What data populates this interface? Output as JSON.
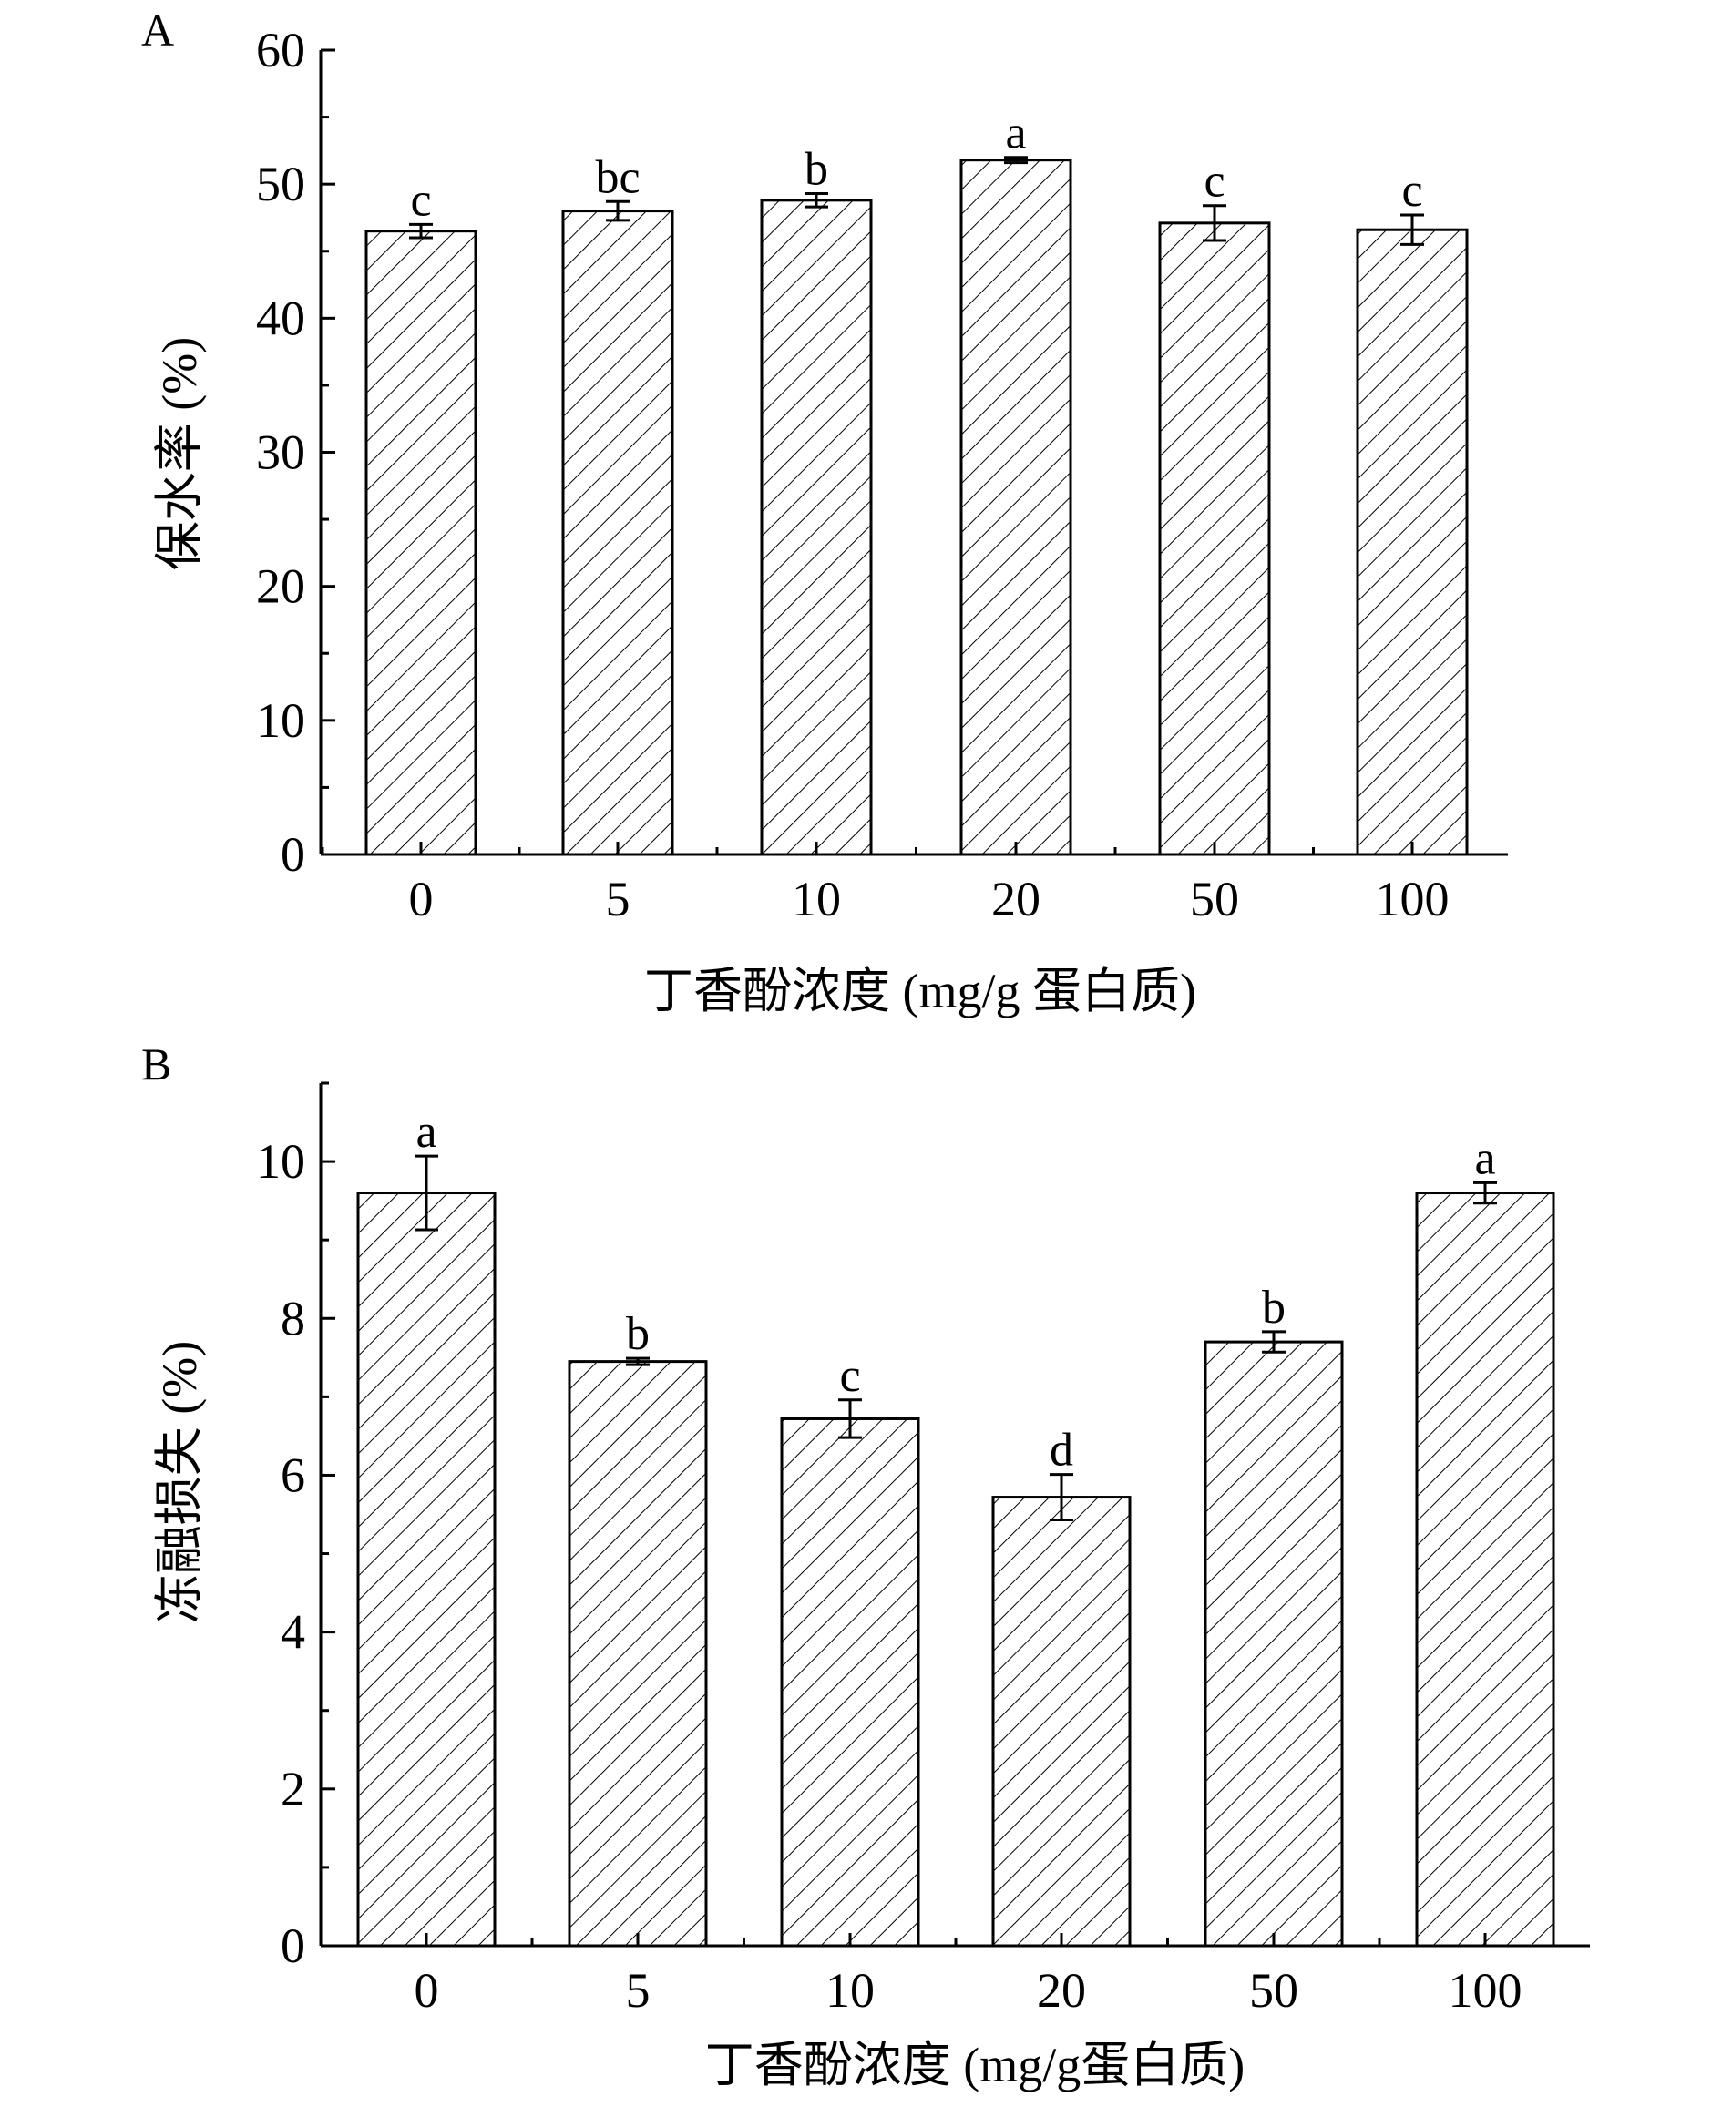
{
  "chart_data": [
    {
      "panel": "A",
      "type": "bar",
      "categories": [
        "0",
        "5",
        "10",
        "20",
        "50",
        "100"
      ],
      "values": [
        46.5,
        48.0,
        48.8,
        51.8,
        47.1,
        46.6
      ],
      "errors": [
        0.5,
        0.7,
        0.5,
        0.2,
        1.3,
        1.1
      ],
      "significance": [
        "c",
        "bc",
        "b",
        "a",
        "c",
        "c"
      ],
      "xlabel": "丁香酚浓度 (mg/g 蛋白质)",
      "ylabel": "保水率 (%)",
      "ylim": [
        0,
        60
      ],
      "yticks": [
        "0",
        "10",
        "20",
        "30",
        "40",
        "50",
        "60"
      ],
      "grid": false,
      "fill_pattern": "diagonal-hatch"
    },
    {
      "panel": "B",
      "type": "bar",
      "categories": [
        "0",
        "5",
        "10",
        "20",
        "50",
        "100"
      ],
      "values": [
        9.6,
        7.45,
        6.72,
        5.72,
        7.7,
        9.6
      ],
      "errors": [
        0.47,
        0.04,
        0.24,
        0.29,
        0.13,
        0.13
      ],
      "significance": [
        "a",
        "b",
        "c",
        "d",
        "b",
        "a"
      ],
      "xlabel": "丁香酚浓度 (mg/g蛋白质)",
      "ylabel": "冻融损失 (%)",
      "ylim": [
        0,
        11
      ],
      "yticks": [
        "0",
        "2",
        "4",
        "6",
        "8",
        "10"
      ],
      "grid": false,
      "fill_pattern": "diagonal-hatch"
    }
  ]
}
